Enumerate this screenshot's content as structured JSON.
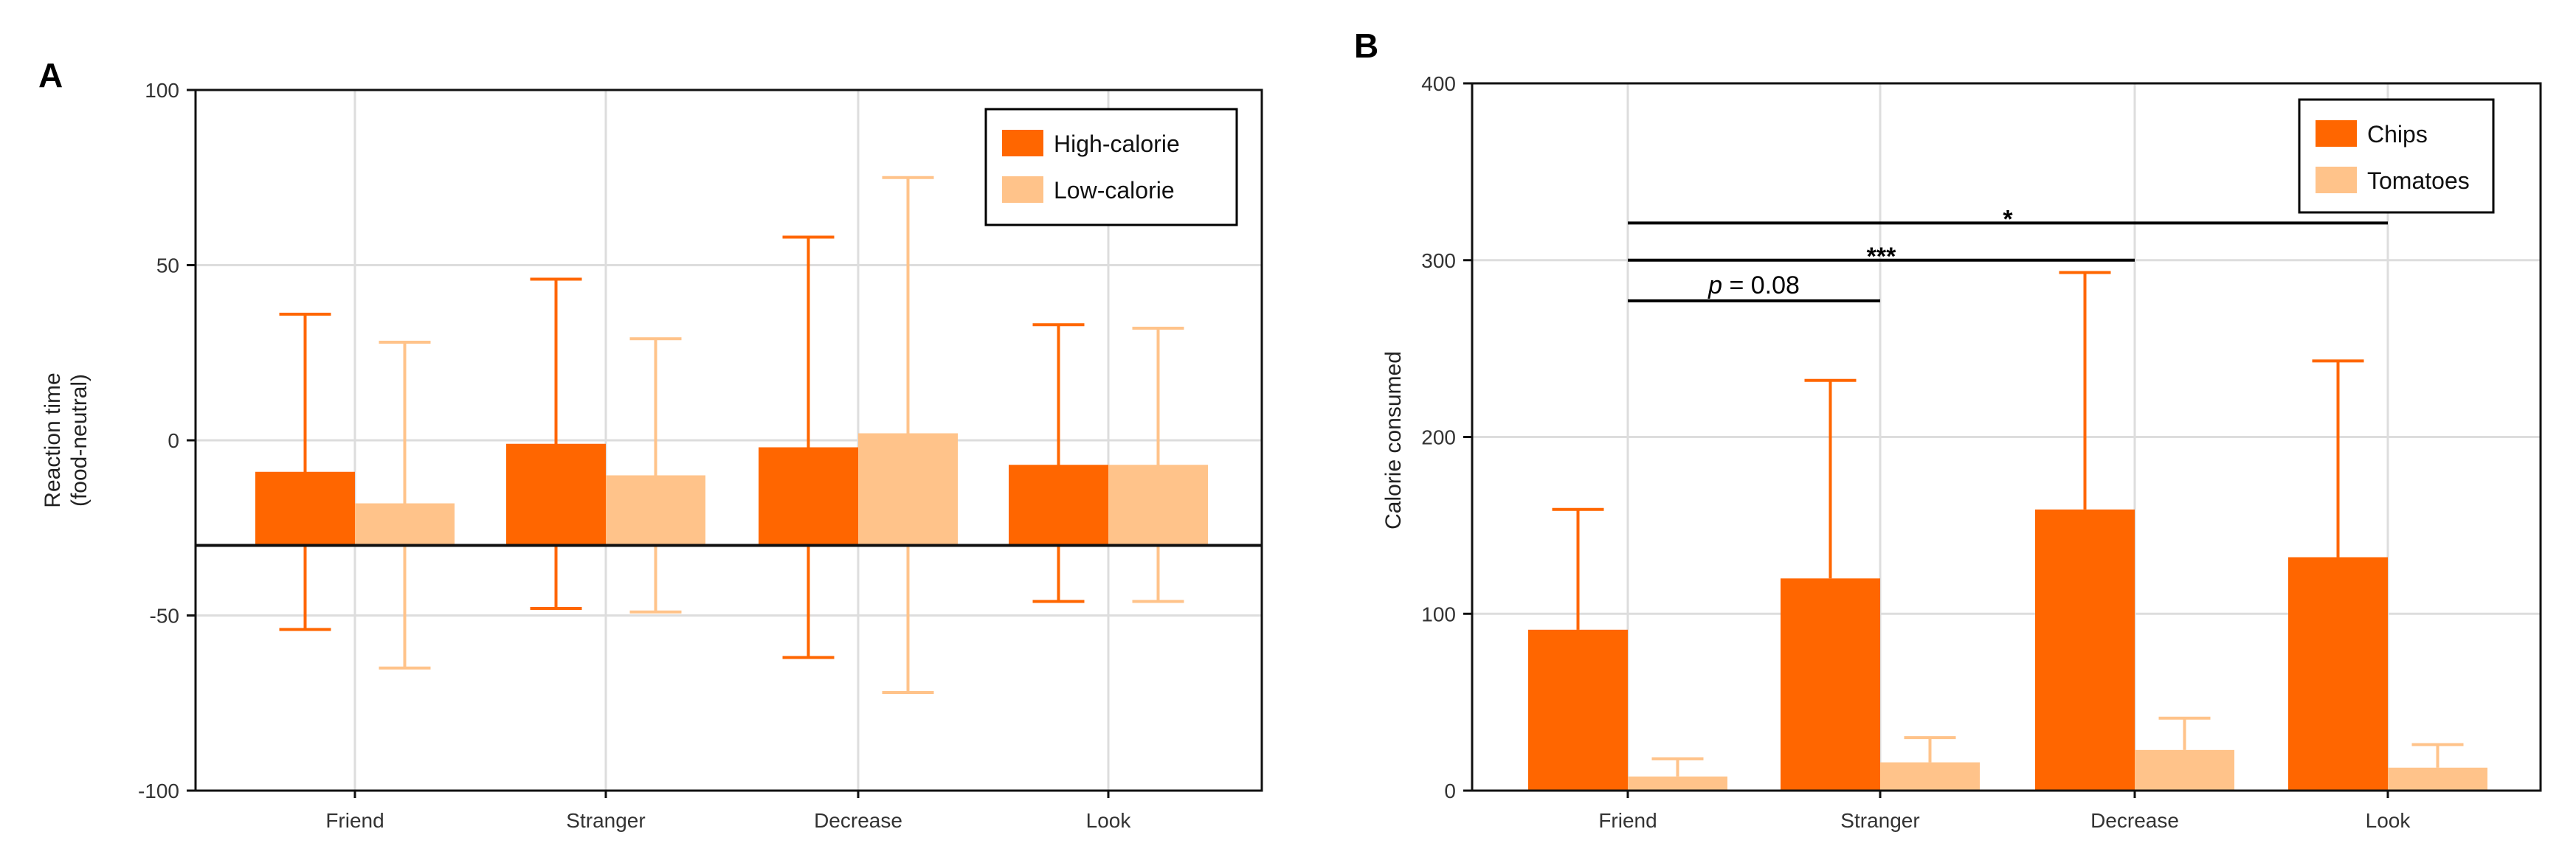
{
  "colors": {
    "high": "#ff6600",
    "low": "#ffc38a",
    "grid": "#dddddd",
    "axis": "#111111"
  },
  "chart_data": [
    {
      "panel": "A",
      "type": "bar",
      "title": "",
      "xlabel": "",
      "ylabel": "Reaction time",
      "ylabel_sub": "(food-neutral)",
      "categories": [
        "Friend",
        "Stranger",
        "Decrease",
        "Look"
      ],
      "series": [
        {
          "name": "High-calorie",
          "values": [
            -9,
            -1,
            -2,
            -7
          ],
          "error_upper": [
            36,
            46,
            58,
            33
          ],
          "error_lower": [
            -54,
            -48,
            -62,
            -46
          ]
        },
        {
          "name": "Low-calorie",
          "values": [
            -18,
            -10,
            2,
            -7
          ],
          "error_upper": [
            28,
            29,
            75,
            32
          ],
          "error_lower": [
            -65,
            -49,
            -72,
            -46
          ]
        }
      ],
      "bar_baseline": -30,
      "ylim": [
        -100,
        100
      ],
      "yticks": [
        -100,
        -50,
        0,
        50,
        100
      ],
      "grid": true,
      "legend": "top-right"
    },
    {
      "panel": "B",
      "type": "bar",
      "title": "",
      "xlabel": "",
      "ylabel": "Calorie consumed",
      "categories": [
        "Friend",
        "Stranger",
        "Decrease",
        "Look"
      ],
      "series": [
        {
          "name": "Chips",
          "values": [
            91,
            120,
            159,
            132
          ],
          "error_upper": [
            159,
            232,
            293,
            243
          ]
        },
        {
          "name": "Tomatoes",
          "values": [
            8,
            16,
            23,
            13
          ],
          "error_upper": [
            18,
            30,
            41,
            26
          ]
        }
      ],
      "bar_baseline": 0,
      "ylim": [
        0,
        400
      ],
      "yticks": [
        0,
        100,
        200,
        300,
        400
      ],
      "grid": true,
      "legend": "top-right",
      "significance": [
        {
          "from": "Friend",
          "to": "Stranger",
          "y": 277,
          "label_italic": "p",
          "label_rest": " = 0.08"
        },
        {
          "from": "Friend",
          "to": "Decrease",
          "y": 300,
          "label": "***"
        },
        {
          "from": "Friend",
          "to": "Look",
          "y": 321,
          "label": "*"
        }
      ]
    }
  ]
}
